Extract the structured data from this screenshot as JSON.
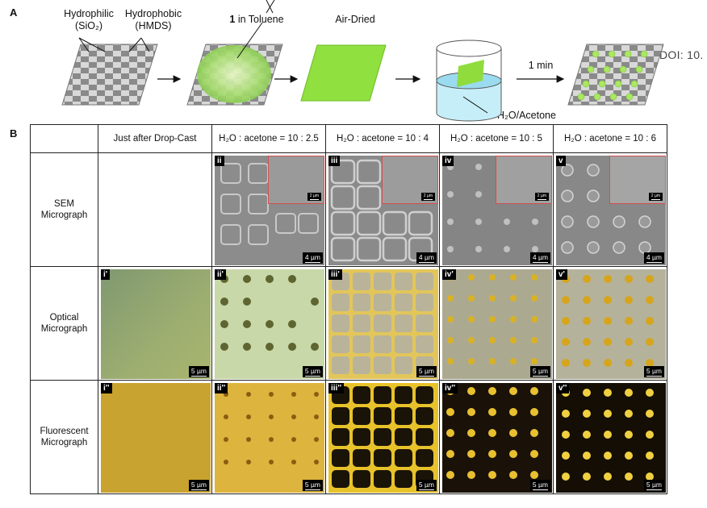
{
  "panel_a": {
    "letter": "A",
    "label_hydrophilic": "Hydrophilic",
    "label_sio2": "(SiO₂)",
    "label_hydrophobic": "Hydrophobic",
    "label_hmds": "(HMDS)",
    "label_toluene_num": "1",
    "label_toluene": " in Toluene",
    "label_airdried": "Air-Dried",
    "label_time": "1 min",
    "label_solvent": "H₂O/Acetone",
    "doi": "DOI: 10."
  },
  "panel_b": {
    "letter": "B",
    "col_headers": [
      "Just after Drop-Cast",
      "H₂O : acetone = 10 : 2.5",
      "H₂O : acetone = 10 : 4",
      "H₂O : acetone = 10 : 5",
      "H₂O : acetone = 10 : 6"
    ],
    "rows": [
      {
        "title1": "SEM",
        "title2": "Micrograph",
        "tags": [
          "",
          "ii",
          "iii",
          "iv",
          "v"
        ],
        "scale": "4 µm",
        "inset_scale": "2 µm"
      },
      {
        "title1": "Optical",
        "title2": "Micrograph",
        "tags": [
          "i'",
          "ii'",
          "iii'",
          "iv'",
          "v'"
        ],
        "scale": "5 µm"
      },
      {
        "title1": "Fluorescent",
        "title2": "Micrograph",
        "tags": [
          "i''",
          "ii''",
          "iii''",
          "iv''",
          "v''"
        ],
        "scale": "5 µm"
      }
    ]
  }
}
